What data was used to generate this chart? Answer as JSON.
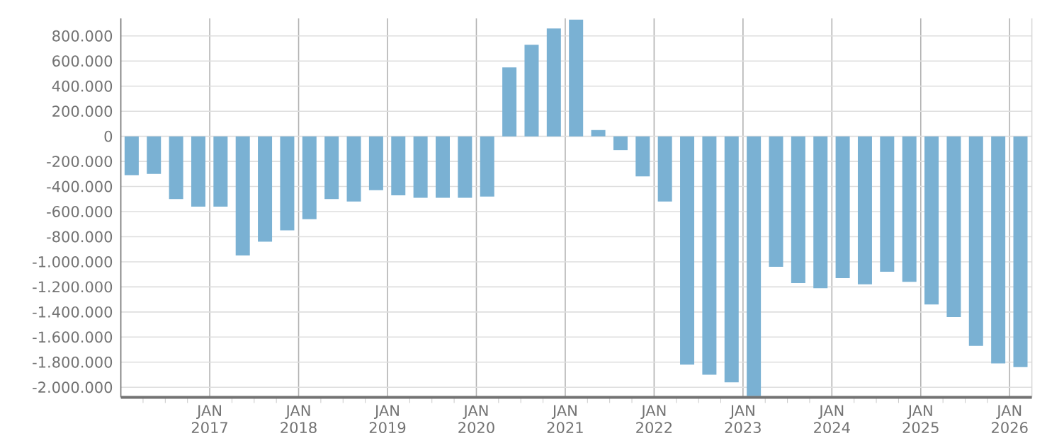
{
  "chart_data": {
    "type": "bar",
    "color": "#7ab1d3",
    "x": [
      "2016-02-15",
      "2016-05-15",
      "2016-08-15",
      "2016-11-15",
      "2017-02-15",
      "2017-05-15",
      "2017-08-15",
      "2017-11-15",
      "2018-02-15",
      "2018-05-15",
      "2018-08-15",
      "2018-11-15",
      "2019-02-15",
      "2019-05-15",
      "2019-08-15",
      "2019-11-15",
      "2020-02-15",
      "2020-05-15",
      "2020-08-15",
      "2020-11-15",
      "2021-02-15",
      "2021-05-15",
      "2021-08-15",
      "2021-11-15",
      "2022-02-15",
      "2022-05-15",
      "2022-08-15",
      "2022-11-15",
      "2023-02-15",
      "2023-05-15",
      "2023-08-15",
      "2023-11-15",
      "2024-02-15",
      "2024-05-15",
      "2024-08-15",
      "2024-11-15",
      "2025-02-15",
      "2025-05-15",
      "2025-08-15",
      "2025-11-15",
      "2026-02-15"
    ],
    "values": [
      -310000,
      -300000,
      -500000,
      -560000,
      -560000,
      -950000,
      -840000,
      -750000,
      -660000,
      -500000,
      -520000,
      -430000,
      -470000,
      -490000,
      -490000,
      -490000,
      -480000,
      550000,
      730000,
      860000,
      930000,
      50000,
      -110000,
      -320000,
      -520000,
      -1820000,
      -1900000,
      -1960000,
      -2070000,
      -1040000,
      -1170000,
      -1210000,
      -1130000,
      -1180000,
      -1080000,
      -1160000,
      -1340000,
      -1440000,
      -1670000,
      -1810000,
      -1840000
    ],
    "xlim": [
      "2016-01",
      "2026-04"
    ],
    "xticks": [
      {
        "value": "2016-04",
        "label": null
      },
      {
        "value": "2016-07",
        "label": null
      },
      {
        "value": "2016-10",
        "label": null
      },
      {
        "value": "2017-01",
        "label": "JAN 2017"
      },
      {
        "value": "2017-04",
        "label": null
      },
      {
        "value": "2017-07",
        "label": null
      },
      {
        "value": "2017-10",
        "label": null
      },
      {
        "value": "2018-01",
        "label": "JAN 2018"
      },
      {
        "value": "2018-04",
        "label": null
      },
      {
        "value": "2018-07",
        "label": null
      },
      {
        "value": "2018-10",
        "label": null
      },
      {
        "value": "2019-01",
        "label": "JAN 2019"
      },
      {
        "value": "2019-04",
        "label": null
      },
      {
        "value": "2019-07",
        "label": null
      },
      {
        "value": "2019-10",
        "label": null
      },
      {
        "value": "2020-01",
        "label": "JAN 2020"
      },
      {
        "value": "2020-04",
        "label": null
      },
      {
        "value": "2020-07",
        "label": null
      },
      {
        "value": "2020-10",
        "label": null
      },
      {
        "value": "2021-01",
        "label": "JAN 2021"
      },
      {
        "value": "2021-04",
        "label": null
      },
      {
        "value": "2021-07",
        "label": null
      },
      {
        "value": "2021-10",
        "label": null
      },
      {
        "value": "2022-01",
        "label": "JAN 2022"
      },
      {
        "value": "2022-04",
        "label": null
      },
      {
        "value": "2022-07",
        "label": null
      },
      {
        "value": "2022-10",
        "label": null
      },
      {
        "value": "2023-01",
        "label": "JAN 2023"
      },
      {
        "value": "2023-04",
        "label": null
      },
      {
        "value": "2023-07",
        "label": null
      },
      {
        "value": "2023-10",
        "label": null
      },
      {
        "value": "2024-01",
        "label": "JAN 2024"
      },
      {
        "value": "2024-04",
        "label": null
      },
      {
        "value": "2024-07",
        "label": null
      },
      {
        "value": "2024-10",
        "label": null
      },
      {
        "value": "2025-01",
        "label": "JAN 2025"
      },
      {
        "value": "2025-04",
        "label": null
      },
      {
        "value": "2025-07",
        "label": null
      },
      {
        "value": "2025-10",
        "label": null
      },
      {
        "value": "2026-01",
        "label": "JAN 2026"
      }
    ],
    "ylim": [
      -2080000,
      940000
    ],
    "yticks": [
      {
        "value": 800000,
        "label": "800.000"
      },
      {
        "value": 600000,
        "label": "600.000"
      },
      {
        "value": 400000,
        "label": "400.000"
      },
      {
        "value": 200000,
        "label": "200.000"
      },
      0,
      {
        "value": -200000,
        "label": "-200.000"
      },
      {
        "value": -400000,
        "label": "-400.000"
      },
      {
        "value": -600000,
        "label": "-600.000"
      },
      {
        "value": -800000,
        "label": "-800.000"
      },
      {
        "value": -1000000,
        "label": "-1.000.000"
      },
      {
        "value": -1200000,
        "label": "-1.200.000"
      },
      {
        "value": -1400000,
        "label": "-1.400.000"
      },
      {
        "value": -1600000,
        "label": "-1.600.000"
      },
      {
        "value": -1800000,
        "label": "-1.800.000"
      },
      {
        "value": -2000000,
        "label": "-2.000.000"
      }
    ],
    "grid": true
  }
}
